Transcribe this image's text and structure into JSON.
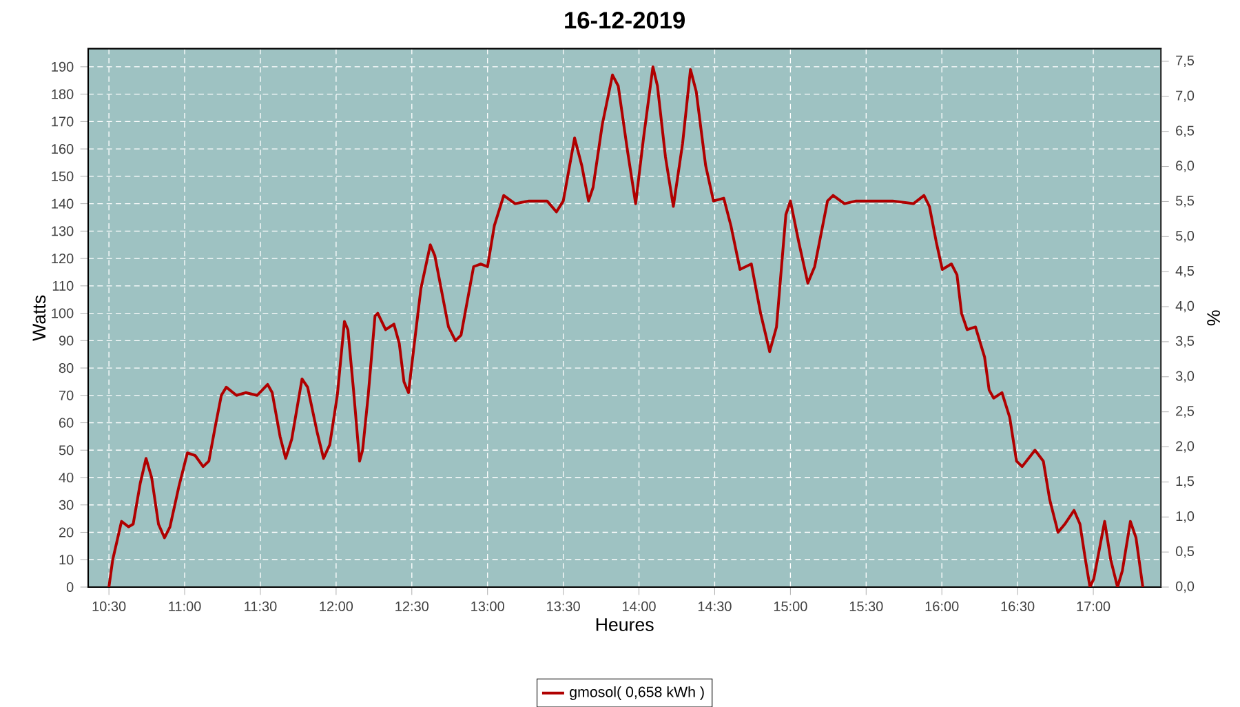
{
  "chart_data": {
    "type": "line",
    "title": "16-12-2019",
    "xlabel": "Heures",
    "ylabel": "Watts",
    "y2label": "%",
    "xlim": [
      10.363,
      17.447
    ],
    "ylim": [
      0,
      196.6
    ],
    "y2lim": [
      0,
      7.68
    ],
    "xticks": [
      {
        "value": 10.5,
        "label": "10:30"
      },
      {
        "value": 11,
        "label": "11:00"
      },
      {
        "value": 11.5,
        "label": "11:30"
      },
      {
        "value": 12,
        "label": "12:00"
      },
      {
        "value": 12.5,
        "label": "12:30"
      },
      {
        "value": 13,
        "label": "13:00"
      },
      {
        "value": 13.5,
        "label": "13:30"
      },
      {
        "value": 14,
        "label": "14:00"
      },
      {
        "value": 14.5,
        "label": "14:30"
      },
      {
        "value": 15,
        "label": "15:00"
      },
      {
        "value": 15.5,
        "label": "15:30"
      },
      {
        "value": 16,
        "label": "16:00"
      },
      {
        "value": 16.5,
        "label": "16:30"
      },
      {
        "value": 17,
        "label": "17:00"
      }
    ],
    "yticks": [
      0,
      10,
      20,
      30,
      40,
      50,
      60,
      70,
      80,
      90,
      100,
      110,
      120,
      130,
      140,
      150,
      160,
      170,
      180,
      190
    ],
    "y2ticks": [
      {
        "value": 0,
        "label": "0,0"
      },
      {
        "value": 0.5,
        "label": "0,5"
      },
      {
        "value": 1,
        "label": "1,0"
      },
      {
        "value": 1.5,
        "label": "1,5"
      },
      {
        "value": 2,
        "label": "2,0"
      },
      {
        "value": 2.5,
        "label": "2,5"
      },
      {
        "value": 3,
        "label": "3,0"
      },
      {
        "value": 3.5,
        "label": "3,5"
      },
      {
        "value": 4,
        "label": "4,0"
      },
      {
        "value": 4.5,
        "label": "4,5"
      },
      {
        "value": 5,
        "label": "5,0"
      },
      {
        "value": 5.5,
        "label": "5,5"
      },
      {
        "value": 6,
        "label": "6,0"
      },
      {
        "value": 6.5,
        "label": "6,5"
      },
      {
        "value": 7,
        "label": "7,0"
      },
      {
        "value": 7.5,
        "label": "7,5"
      }
    ],
    "grid": true,
    "legend": "bottom",
    "marker": "none",
    "line_style": "solid",
    "series": [
      {
        "name": "gmosol( 0,658 kWh )",
        "color": "#b00000",
        "x": [
          10.5,
          10.525,
          10.583,
          10.63,
          10.66,
          10.707,
          10.745,
          10.782,
          10.827,
          10.867,
          10.903,
          10.963,
          11.018,
          11.07,
          11.122,
          11.16,
          11.2,
          11.242,
          11.275,
          11.342,
          11.403,
          11.478,
          11.548,
          11.578,
          11.63,
          11.667,
          11.707,
          11.775,
          11.812,
          11.873,
          11.917,
          11.958,
          12.008,
          12.055,
          12.078,
          12.115,
          12.155,
          12.175,
          12.212,
          12.257,
          12.275,
          12.327,
          12.382,
          12.417,
          12.448,
          12.478,
          12.56,
          12.622,
          12.652,
          12.742,
          12.788,
          12.825,
          12.908,
          12.955,
          13.0,
          13.045,
          13.107,
          13.182,
          13.273,
          13.333,
          13.393,
          13.455,
          13.5,
          13.575,
          13.622,
          13.667,
          13.697,
          13.758,
          13.825,
          13.863,
          13.925,
          13.978,
          14.03,
          14.092,
          14.122,
          14.175,
          14.227,
          14.288,
          14.34,
          14.378,
          14.44,
          14.492,
          14.56,
          14.607,
          14.667,
          14.742,
          14.803,
          14.863,
          14.908,
          14.97,
          15.0,
          15.055,
          15.115,
          15.16,
          15.245,
          15.282,
          15.357,
          15.433,
          15.555,
          15.675,
          15.812,
          15.882,
          15.918,
          15.963,
          16.003,
          16.063,
          16.1,
          16.13,
          16.167,
          16.222,
          16.282,
          16.312,
          16.342,
          16.397,
          16.448,
          16.493,
          16.53,
          16.615,
          16.67,
          16.712,
          16.767,
          16.812,
          16.873,
          16.912,
          16.948,
          16.978,
          17.003,
          17.075,
          17.115,
          17.16,
          17.192,
          17.245,
          17.282,
          17.327
        ],
        "values": [
          0,
          10,
          24,
          22,
          23,
          38,
          47,
          40,
          23,
          18,
          22,
          37,
          49,
          48,
          44,
          46,
          58,
          70,
          73,
          70,
          71,
          70,
          74,
          71,
          55,
          47,
          54,
          76,
          73,
          57,
          47,
          52,
          70,
          97,
          94,
          72,
          46,
          50,
          70,
          99,
          100,
          94,
          96,
          89,
          75,
          71,
          109,
          125,
          121,
          95,
          90,
          92,
          117,
          118,
          117,
          132,
          143,
          140,
          141,
          141,
          141,
          137,
          141,
          164,
          154,
          141,
          146,
          169,
          187,
          183,
          159,
          140,
          164,
          190,
          183,
          157,
          139,
          162,
          189,
          181,
          154,
          141,
          142,
          132,
          116,
          118,
          100,
          86,
          95,
          136,
          141,
          126,
          111,
          117,
          141,
          143,
          140,
          141,
          141,
          141,
          140,
          143,
          139,
          126,
          116,
          118,
          114,
          100,
          94,
          95,
          84,
          72,
          69,
          71,
          62,
          46,
          44,
          50,
          46,
          32,
          20,
          23,
          28,
          23,
          10,
          0,
          3,
          24,
          10,
          0,
          6,
          24,
          18,
          0
        ]
      }
    ]
  }
}
